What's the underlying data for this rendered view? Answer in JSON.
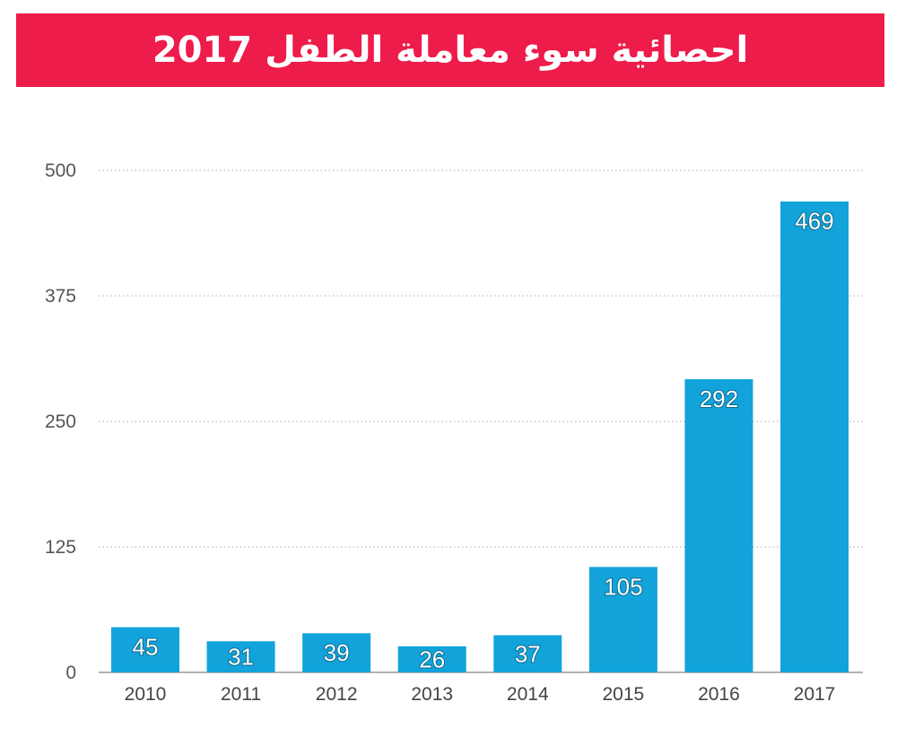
{
  "colors": {
    "banner": "#EE1C4A",
    "bar": "#12A3DB",
    "grid": "#aaaaaa",
    "axis": "#999999"
  },
  "chart_data": {
    "type": "bar",
    "title": "احصائية سوء معاملة الطفل 2017",
    "categories": [
      "2010",
      "2011",
      "2012",
      "2013",
      "2014",
      "2015",
      "2016",
      "2017"
    ],
    "values": [
      45,
      31,
      39,
      26,
      37,
      105,
      292,
      469
    ],
    "yticks": [
      0,
      125,
      250,
      375,
      500
    ],
    "ylim": [
      0,
      500
    ],
    "xlabel": "",
    "ylabel": "",
    "grid": true,
    "legend": "none"
  }
}
